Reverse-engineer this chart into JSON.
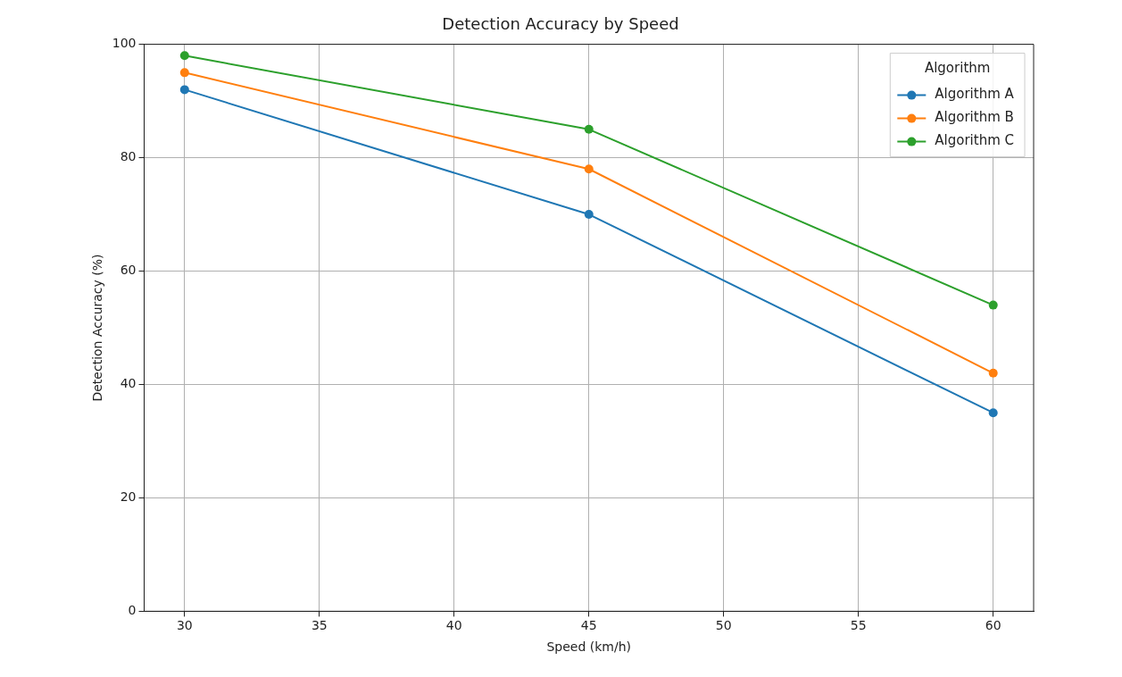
{
  "chart_data": {
    "type": "line",
    "title": "Detection Accuracy by Speed",
    "xlabel": "Speed (km/h)",
    "ylabel": "Detection Accuracy (%)",
    "legend_title": "Algorithm",
    "x": [
      30,
      45,
      60
    ],
    "series": [
      {
        "name": "Algorithm A",
        "color": "#1f77b4",
        "values": [
          92,
          70,
          35
        ]
      },
      {
        "name": "Algorithm B",
        "color": "#ff7f0e",
        "values": [
          95,
          78,
          42
        ]
      },
      {
        "name": "Algorithm C",
        "color": "#2ca02c",
        "values": [
          98,
          85,
          54
        ]
      }
    ],
    "xlim": [
      28.5,
      61.5
    ],
    "xticks": [
      30,
      35,
      40,
      45,
      50,
      55,
      60
    ],
    "ylim": [
      0,
      100
    ],
    "yticks": [
      0,
      20,
      40,
      60,
      80,
      100
    ],
    "grid": true,
    "legend": "top right",
    "marker": "circle",
    "line_style": "solid"
  }
}
